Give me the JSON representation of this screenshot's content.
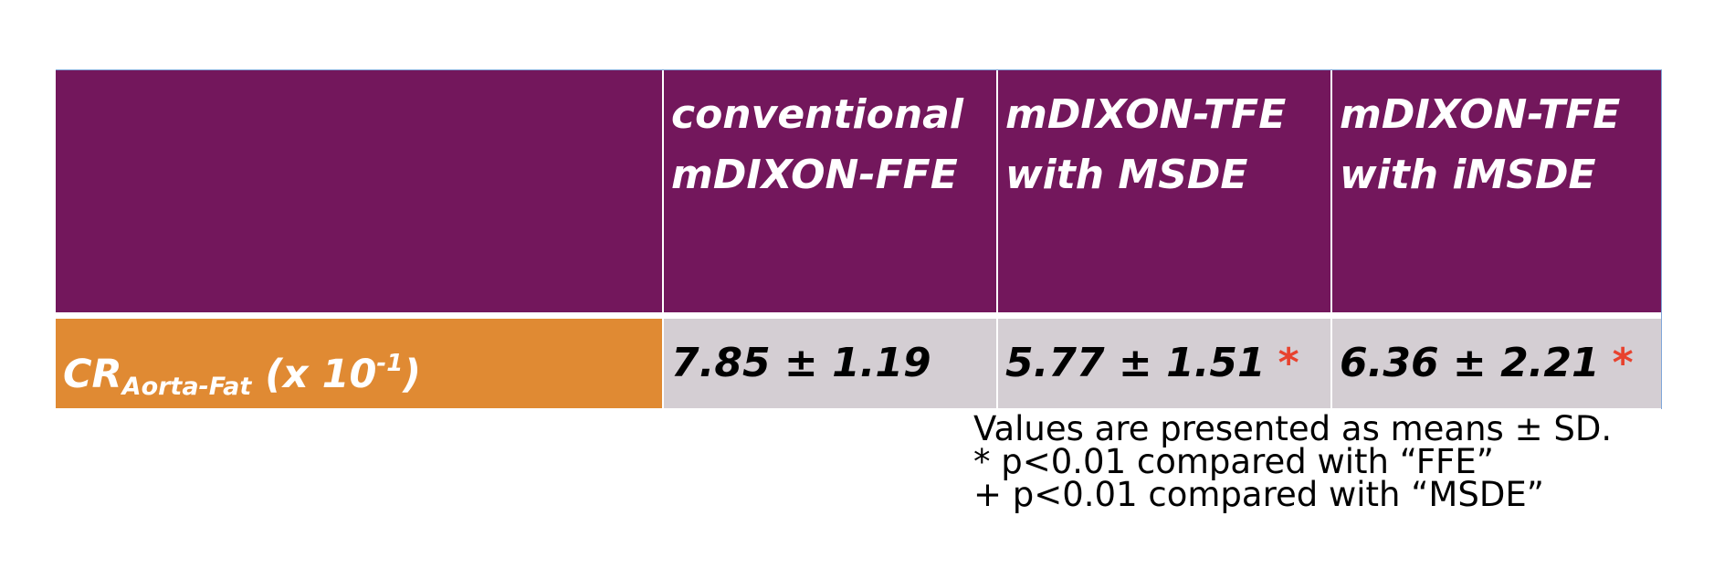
{
  "table": {
    "header": {
      "empty": "",
      "columns": [
        {
          "line1": "conventional",
          "line2": "mDIXON-FFE"
        },
        {
          "line1": "mDIXON-TFE",
          "line2": "with MSDE"
        },
        {
          "line1": "mDIXON-TFE",
          "line2": "with iMSDE"
        }
      ]
    },
    "row": {
      "label_main": "CR",
      "label_sub": "Aorta-Fat",
      "label_open": " (x 10",
      "label_sup": "-1",
      "label_close": ")",
      "values": [
        {
          "value": "7.85 ± 1.19",
          "marker": ""
        },
        {
          "value": "5.77 ± 1.51",
          "marker": "*"
        },
        {
          "value": "6.36 ± 2.21",
          "marker": "*"
        }
      ]
    },
    "colors": {
      "header_bg": "#73175c",
      "label_bg": "#e08a33",
      "value_bg": "#d4ced3",
      "marker": "#e8422e"
    }
  },
  "footnotes": [
    "Values are presented as means ± SD.",
    "* p<0.01 compared with “FFE”",
    "+ p<0.01 compared with “MSDE”"
  ]
}
